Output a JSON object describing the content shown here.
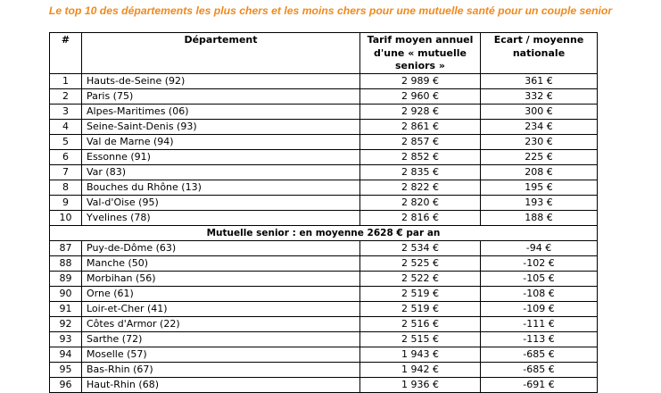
{
  "title": "Le top 10 des départements les plus chers et les moins chers pour une mutuelle santé pour un couple senior",
  "header": {
    "num": "#",
    "department": "Département",
    "tarif_line1": "Tarif moyen annuel",
    "tarif_line2": "d'une « mutuelle",
    "tarif_line3": "seniors »",
    "ecart_line1": "Ecart / moyenne",
    "ecart_line2": "nationale"
  },
  "top_rows": [
    {
      "num": "1",
      "department": "Hauts-de-Seine (92)",
      "tarif": "2 989 €",
      "ecart": "361 €"
    },
    {
      "num": "2",
      "department": "Paris (75)",
      "tarif": "2 960 €",
      "ecart": "332 €"
    },
    {
      "num": "3",
      "department": "Alpes-Maritimes (06)",
      "tarif": "2 928 €",
      "ecart": "300 €"
    },
    {
      "num": "4",
      "department": "Seine-Saint-Denis (93)",
      "tarif": "2 861 €",
      "ecart": "234 €"
    },
    {
      "num": "5",
      "department": "Val de Marne (94)",
      "tarif": "2 857 €",
      "ecart": "230 €"
    },
    {
      "num": "6",
      "department": "Essonne (91)",
      "tarif": "2 852 €",
      "ecart": "225 €"
    },
    {
      "num": "7",
      "department": "Var (83)",
      "tarif": "2 835 €",
      "ecart": "208 €"
    },
    {
      "num": "8",
      "department": "Bouches du Rhône (13)",
      "tarif": "2 822 €",
      "ecart": "195 €"
    },
    {
      "num": "9",
      "department": "Val-d'Oise (95)",
      "tarif": "2 820 €",
      "ecart": "193 €"
    },
    {
      "num": "10",
      "department": "Yvelines (78)",
      "tarif": "2 816 €",
      "ecart": "188 €"
    }
  ],
  "middle_label": "Mutuelle senior : en moyenne 2628 € par an",
  "bottom_rows": [
    {
      "num": "87",
      "department": "Puy-de-Dôme (63)",
      "tarif": "2 534 €",
      "ecart": "-94 €"
    },
    {
      "num": "88",
      "department": "Manche (50)",
      "tarif": "2 525 €",
      "ecart": "-102 €"
    },
    {
      "num": "89",
      "department": "Morbihan (56)",
      "tarif": "2 522 €",
      "ecart": "-105 €"
    },
    {
      "num": "90",
      "department": "Orne (61)",
      "tarif": "2 519 €",
      "ecart": "-108 €"
    },
    {
      "num": "91",
      "department": "Loir-et-Cher (41)",
      "tarif": "2 519 €",
      "ecart": "-109 €"
    },
    {
      "num": "92",
      "department": "Côtes d'Armor (22)",
      "tarif": "2 516 €",
      "ecart": "-111 €"
    },
    {
      "num": "93",
      "department": "Sarthe (72)",
      "tarif": "2 515 €",
      "ecart": "-113 €"
    },
    {
      "num": "94",
      "department": "Moselle (57)",
      "tarif": "1 943 €",
      "ecart": "-685 €"
    },
    {
      "num": "95",
      "department": "Bas-Rhin (67)",
      "tarif": "1 942 €",
      "ecart": "-685 €"
    },
    {
      "num": "96",
      "department": "Haut-Rhin (68)",
      "tarif": "1 936 €",
      "ecart": "-691 €"
    }
  ]
}
